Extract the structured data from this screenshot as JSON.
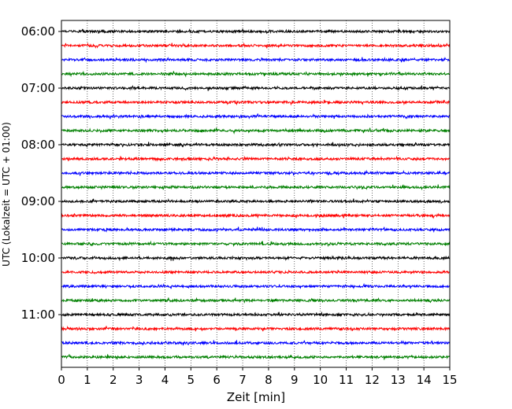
{
  "chart_data": {
    "type": "line",
    "title": "",
    "xlabel": "Zeit  [min]",
    "ylabel": "UTC (Lokalzeit = UTC + 01:00)",
    "xlim": [
      0,
      15
    ],
    "x_ticks": [
      "0",
      "1",
      "2",
      "3",
      "4",
      "5",
      "6",
      "7",
      "8",
      "9",
      "10",
      "11",
      "12",
      "13",
      "14",
      "15"
    ],
    "y_tick_labels": [
      "06:00",
      "07:00",
      "08:00",
      "09:00",
      "10:00",
      "11:00"
    ],
    "y_tick_times": [
      "06:00",
      "07:00",
      "08:00",
      "09:00",
      "10:00",
      "11:00"
    ],
    "grid": "vertical dotted lines at each minute",
    "trace_interval_min": 15,
    "series": [
      {
        "time": "06:00",
        "color": "#000000"
      },
      {
        "time": "06:15",
        "color": "#ff0000"
      },
      {
        "time": "06:30",
        "color": "#0000ff"
      },
      {
        "time": "06:45",
        "color": "#008000"
      },
      {
        "time": "07:00",
        "color": "#000000"
      },
      {
        "time": "07:15",
        "color": "#ff0000"
      },
      {
        "time": "07:30",
        "color": "#0000ff"
      },
      {
        "time": "07:45",
        "color": "#008000"
      },
      {
        "time": "08:00",
        "color": "#000000"
      },
      {
        "time": "08:15",
        "color": "#ff0000"
      },
      {
        "time": "08:30",
        "color": "#0000ff"
      },
      {
        "time": "08:45",
        "color": "#008000"
      },
      {
        "time": "09:00",
        "color": "#000000"
      },
      {
        "time": "09:15",
        "color": "#ff0000"
      },
      {
        "time": "09:30",
        "color": "#0000ff"
      },
      {
        "time": "09:45",
        "color": "#008000"
      },
      {
        "time": "10:00",
        "color": "#000000"
      },
      {
        "time": "10:15",
        "color": "#ff0000"
      },
      {
        "time": "10:30",
        "color": "#0000ff"
      },
      {
        "time": "10:45",
        "color": "#008000"
      },
      {
        "time": "11:00",
        "color": "#000000"
      },
      {
        "time": "11:15",
        "color": "#ff0000"
      },
      {
        "time": "11:30",
        "color": "#0000ff"
      },
      {
        "time": "11:45",
        "color": "#008000"
      }
    ]
  }
}
